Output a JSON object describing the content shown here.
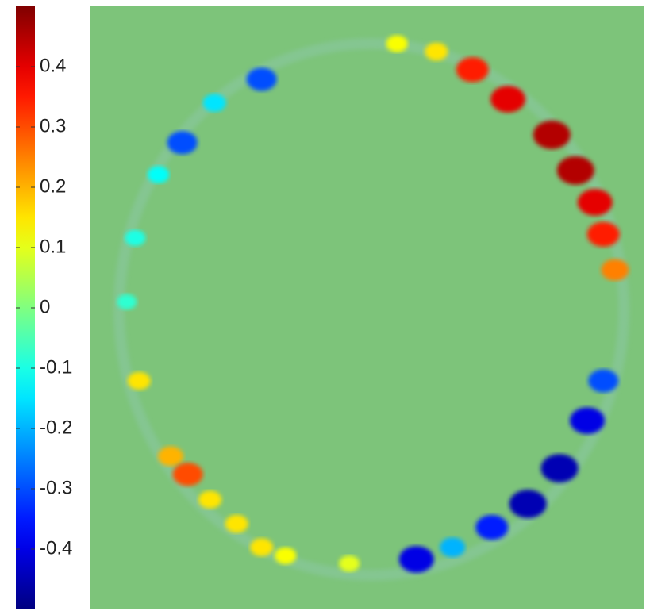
{
  "chart_data": {
    "type": "heatmap",
    "clim": [
      -0.5,
      0.5
    ],
    "cticks": [
      -0.4,
      -0.3,
      -0.2,
      -0.1,
      0,
      0.1,
      0.2,
      0.3,
      0.4
    ],
    "xlim": [
      0,
      100
    ],
    "ylim": [
      0,
      100
    ],
    "x": [
      69,
      75.4,
      83.3,
      87.6,
      91.1,
      92.6,
      94.7,
      62.5,
      55.4,
      92.6,
      89.7,
      84.7,
      79,
      72.5,
      58.9,
      65.4,
      31,
      16.7,
      22.5,
      12.4,
      8.2,
      6.7,
      8.9,
      14.6,
      17.7,
      21.7,
      26.5,
      31,
      35.3,
      46.8
    ],
    "y": [
      89.5,
      84.6,
      78.7,
      72.8,
      67.5,
      62.2,
      56.3,
      92.5,
      93.8,
      37.9,
      31.3,
      23.4,
      17.5,
      13.6,
      8.3,
      10.3,
      87.9,
      77.4,
      84,
      72.1,
      61.6,
      51,
      37.9,
      25.4,
      22.4,
      18.2,
      14.2,
      10.3,
      8.9,
      7.6
    ],
    "values": [
      0.35,
      0.4,
      0.45,
      0.45,
      0.4,
      0.35,
      0.25,
      0.15,
      0.12,
      -0.3,
      -0.4,
      -0.45,
      -0.45,
      -0.35,
      -0.4,
      -0.2,
      -0.3,
      -0.3,
      -0.15,
      -0.12,
      -0.1,
      -0.08,
      0.15,
      0.2,
      0.3,
      0.15,
      0.15,
      0.15,
      0.12,
      0.1
    ]
  }
}
